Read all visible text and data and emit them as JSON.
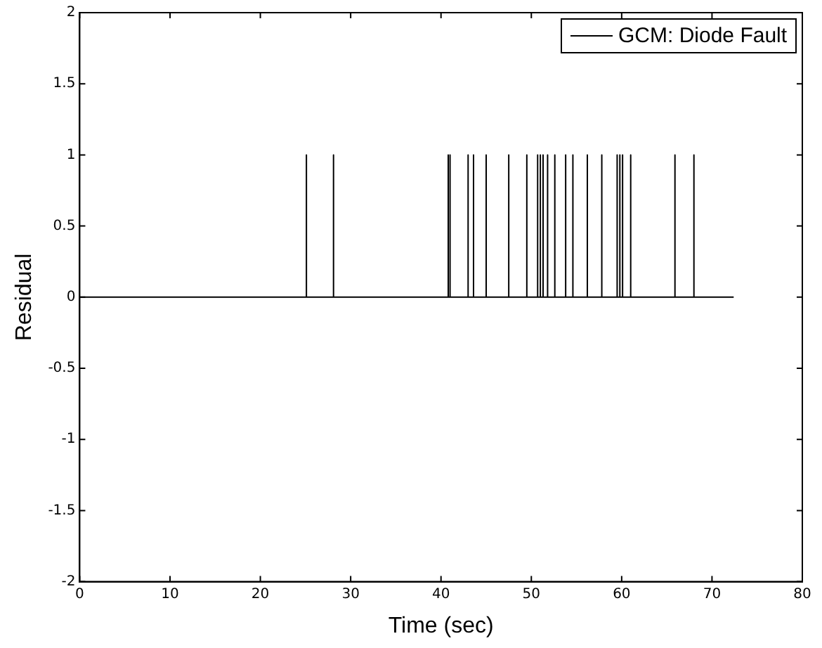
{
  "chart_data": {
    "type": "line",
    "xlabel": "Time (sec)",
    "ylabel": "Residual",
    "series": [
      {
        "name": "GCM: Diode Fault",
        "color": "#000000",
        "x": [
          0,
          25.1,
          25.1,
          25.1,
          28.1,
          28.1,
          28.1,
          40.8,
          40.8,
          40.8,
          41.0,
          41.0,
          41.0,
          43.0,
          43.0,
          43.0,
          43.6,
          43.6,
          43.6,
          45.0,
          45.0,
          45.0,
          47.5,
          47.5,
          47.5,
          49.5,
          49.5,
          49.5,
          50.7,
          50.7,
          50.7,
          51.0,
          51.0,
          51.0,
          51.3,
          51.3,
          51.3,
          51.8,
          51.8,
          51.8,
          52.6,
          52.6,
          52.6,
          53.8,
          53.8,
          53.8,
          54.6,
          54.6,
          54.6,
          56.2,
          56.2,
          56.2,
          57.8,
          57.8,
          57.8,
          59.5,
          59.5,
          59.5,
          59.8,
          59.8,
          59.8,
          60.1,
          60.1,
          60.1,
          61.0,
          61.0,
          61.0,
          65.9,
          65.9,
          65.9,
          68.0,
          68.0,
          68.0,
          72.4
        ],
        "values": [
          0,
          0,
          1,
          0,
          0,
          1,
          0,
          0,
          1,
          0,
          0,
          1,
          0,
          0,
          1,
          0,
          0,
          1,
          0,
          0,
          1,
          0,
          0,
          1,
          0,
          0,
          1,
          0,
          0,
          1,
          0,
          0,
          1,
          0,
          0,
          1,
          0,
          0,
          1,
          0,
          0,
          1,
          0,
          0,
          1,
          0,
          0,
          1,
          0,
          0,
          1,
          0,
          0,
          1,
          0,
          0,
          1,
          0,
          0,
          1,
          0,
          0,
          1,
          0,
          0,
          1,
          0,
          0,
          1,
          0,
          0,
          1,
          0,
          0
        ]
      }
    ],
    "xlim": [
      0,
      80
    ],
    "xticks": [
      0,
      10,
      20,
      30,
      40,
      50,
      60,
      70,
      80
    ],
    "ylim": [
      -2,
      2
    ],
    "yticks": [
      -2,
      -1.5,
      -1,
      -0.5,
      0,
      0.5,
      1,
      1.5,
      2
    ],
    "grid": false,
    "legend": "top right",
    "marker": "none",
    "line_style": "solid"
  }
}
